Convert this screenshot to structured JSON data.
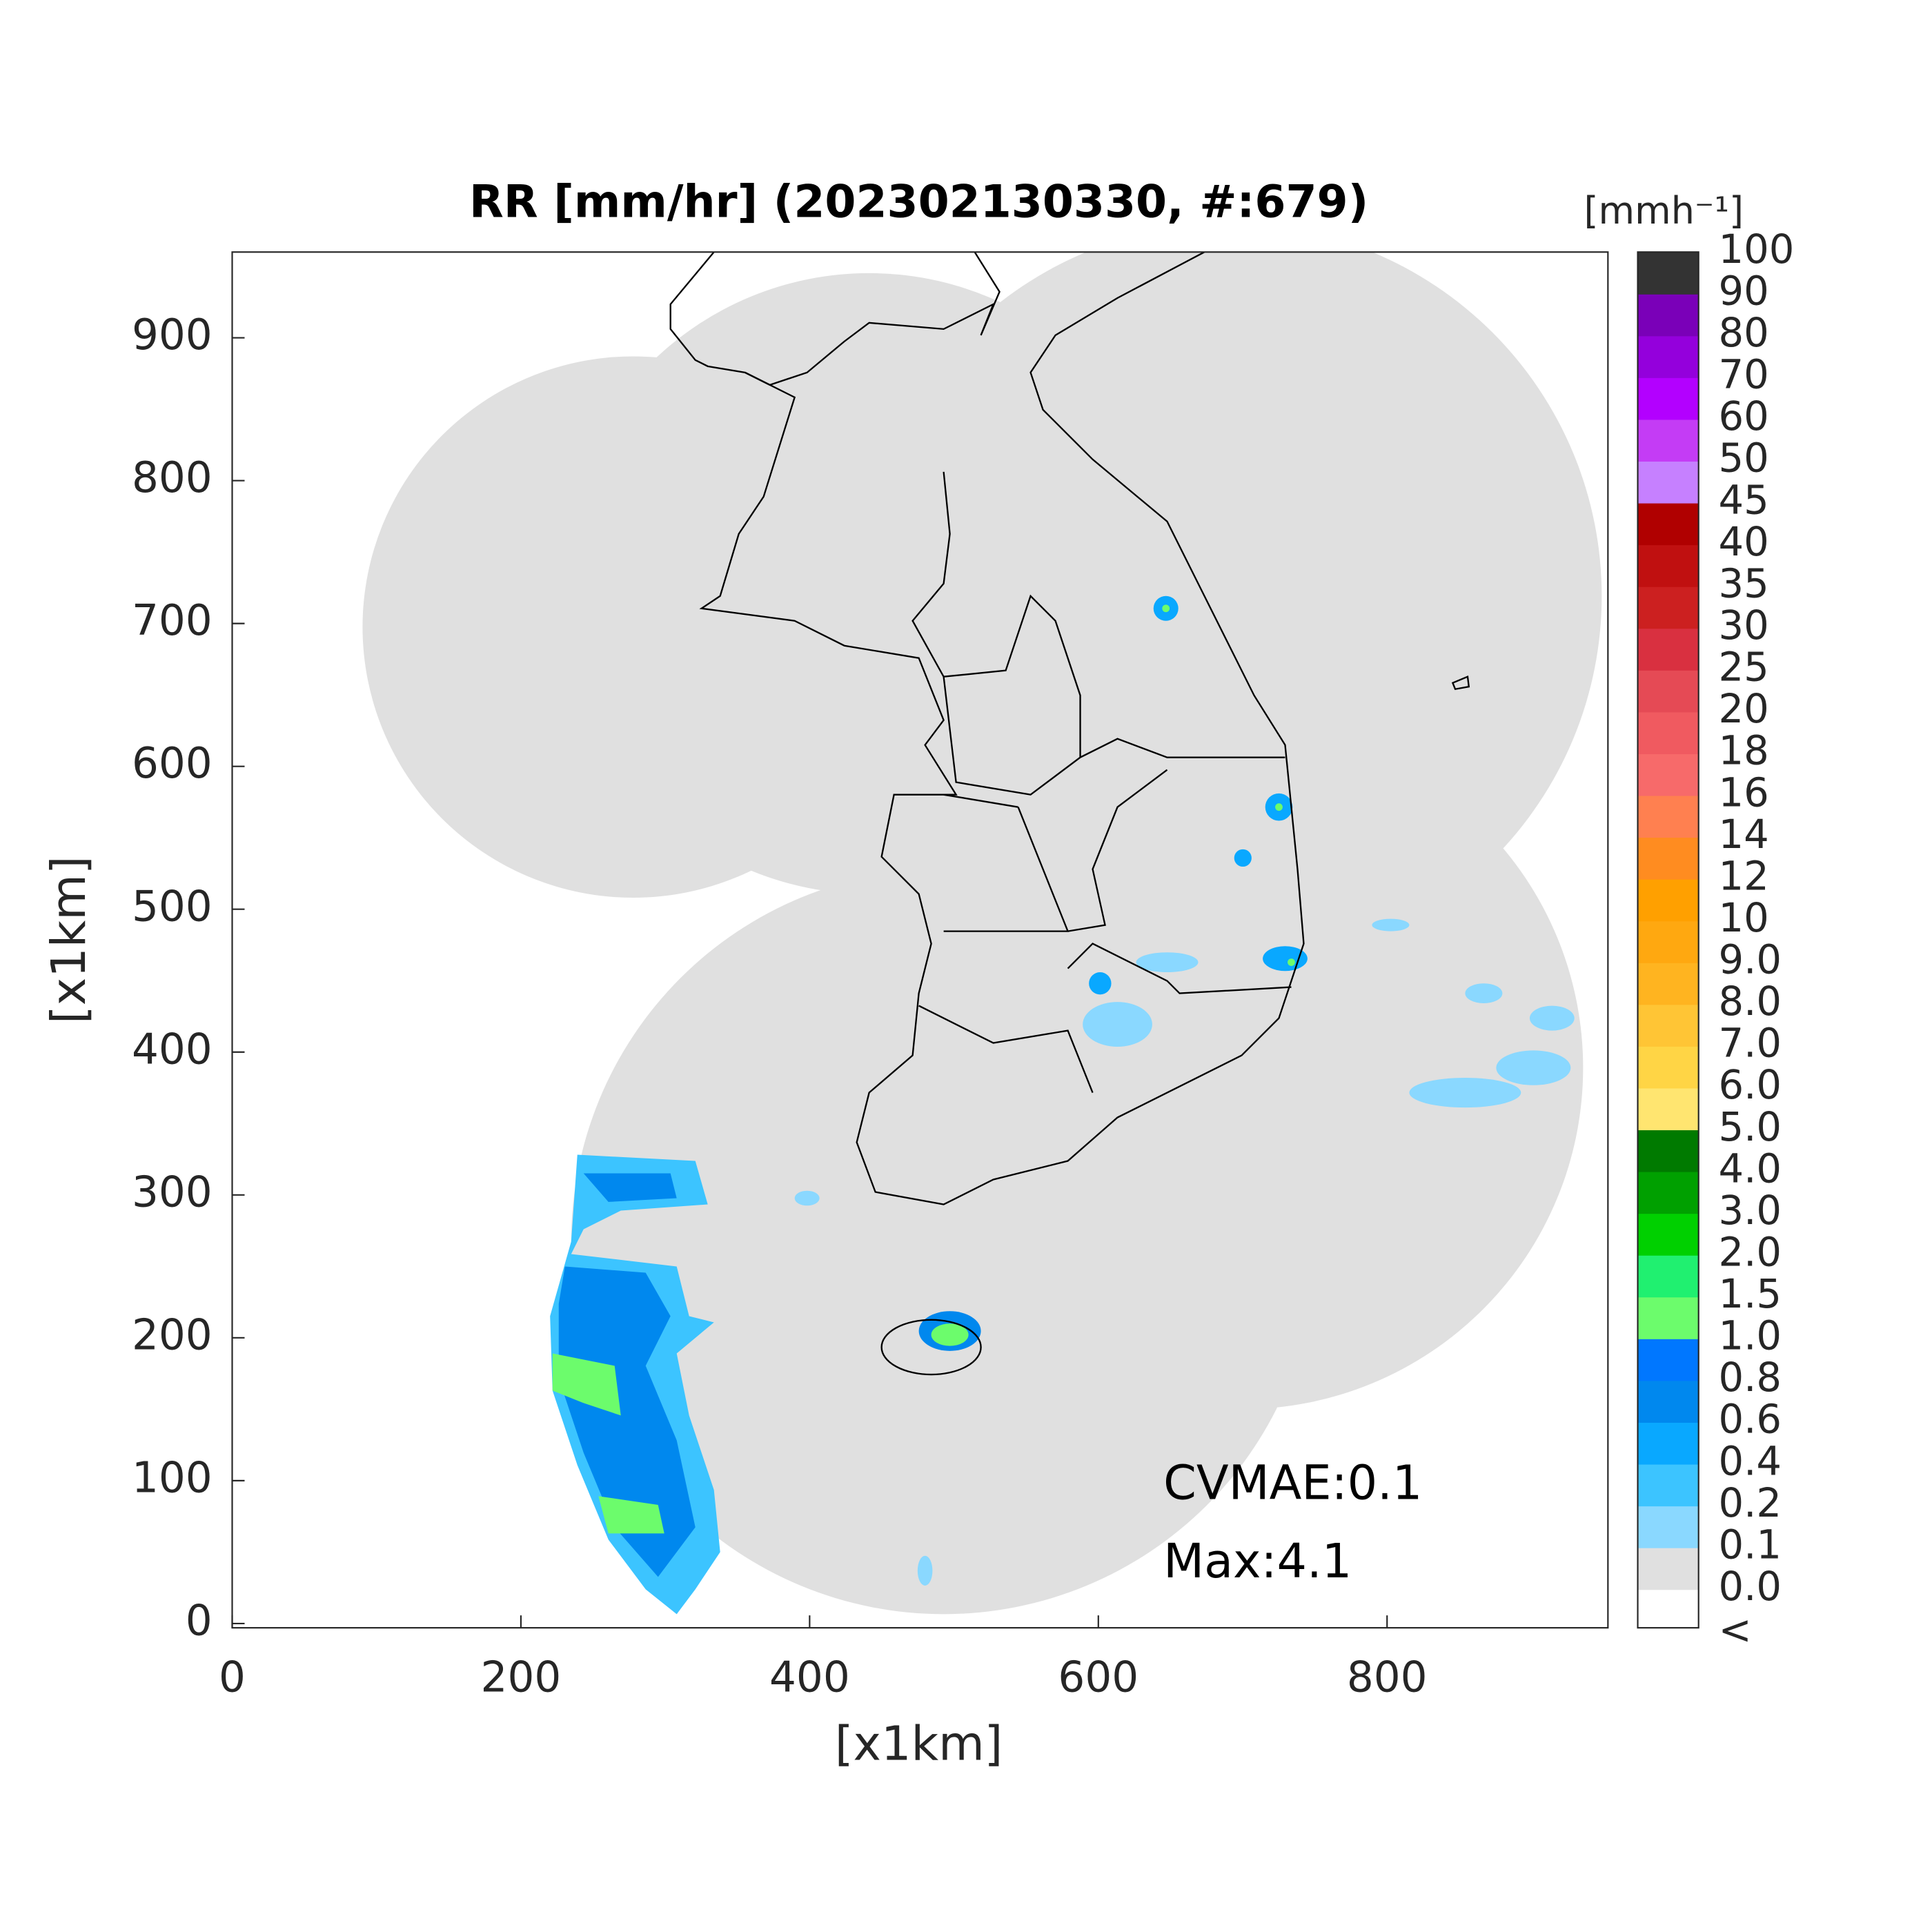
{
  "chart_data": {
    "type": "map",
    "title": "RR [mm/hr] (202302130330, #:679)",
    "xlabel": "[x1km]",
    "ylabel": "[x1km]",
    "xlim": [
      0,
      953
    ],
    "ylim": [
      -3,
      960
    ],
    "xticks": [
      0,
      200,
      400,
      600,
      800
    ],
    "yticks": [
      0,
      100,
      200,
      300,
      400,
      500,
      600,
      700,
      800,
      900
    ],
    "annotations": [
      "CVMAE:0.1",
      "Max:4.1"
    ],
    "colorbar": {
      "unit": "[mmh⁻¹]",
      "levels": [
        {
          "value": 0,
          "label": "0.0"
        },
        0.1,
        0.2,
        0.4,
        0.6,
        0.8,
        {
          "value": 1,
          "label": "1.0"
        },
        1.5,
        {
          "value": 2,
          "label": "2.0"
        },
        {
          "value": 3,
          "label": "3.0"
        },
        {
          "value": 4,
          "label": "4.0"
        },
        {
          "value": 5,
          "label": "5.0"
        },
        {
          "value": 6,
          "label": "6.0"
        },
        {
          "value": 7,
          "label": "7.0"
        },
        {
          "value": 8,
          "label": "8.0"
        },
        {
          "value": 9,
          "label": "9.0"
        },
        10,
        12,
        14,
        16,
        18,
        20,
        25,
        30,
        35,
        40,
        45,
        50,
        60,
        70,
        80,
        90,
        100
      ],
      "colors": [
        "#e0e0e0",
        "#8ad8ff",
        "#3cc4ff",
        "#09a8ff",
        "#0088ee",
        "#0077ff",
        "#6cfc6c",
        "#20f070",
        "#00d000",
        "#00a000",
        "#007a00",
        "#ffe570",
        "#ffd545",
        "#ffc535",
        "#ffb420",
        "#ffa810",
        "#ffa000",
        "#ff8c20",
        "#ff8050",
        "#f76a6a",
        "#f05a60",
        "#e54a55",
        "#d93040",
        "#cc2020",
        "#c01010",
        "#b00000",
        "#c680ff",
        "#c43cf5",
        "#b300ff",
        "#9400dc",
        "#7a00b8",
        "#333333"
      ],
      "under_label": "<",
      "under_color": "#ffffff"
    }
  }
}
